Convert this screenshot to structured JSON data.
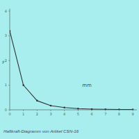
{
  "chart_data": {
    "type": "line",
    "title": "Haftkraft-Diagramm von Artikel CSN-16",
    "x_label": "mm",
    "y_label": "F",
    "x": [
      0,
      1,
      2,
      3,
      4,
      5,
      6,
      7,
      8,
      9
    ],
    "values": [
      3.2,
      1.0,
      0.37,
      0.17,
      0.09,
      0.05,
      0.03,
      0.02,
      0.015,
      0.01
    ],
    "color": "#333333",
    "marker": "circle",
    "xlim": [
      0,
      9.3
    ],
    "xticks": [
      0,
      1,
      2,
      3,
      4,
      5,
      6,
      7,
      8,
      9
    ],
    "ylim": [
      0,
      4.1
    ],
    "yticks": [
      0,
      1,
      2,
      3,
      4
    ],
    "grid": false
  }
}
